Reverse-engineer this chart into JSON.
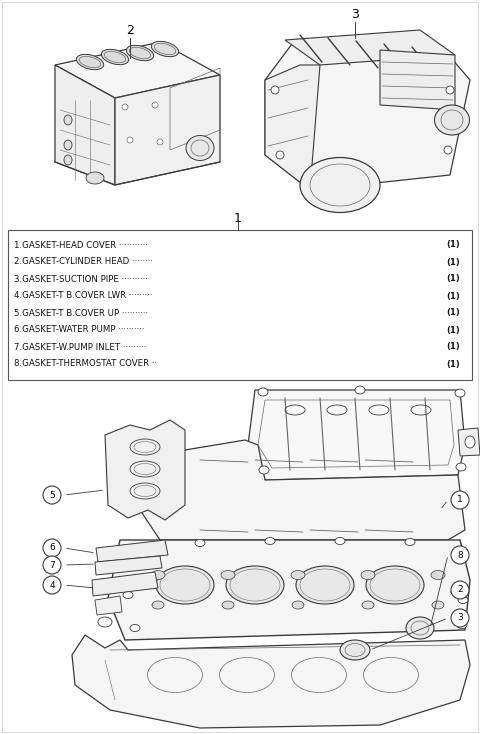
{
  "background_color": "#ffffff",
  "figsize": [
    4.8,
    7.34
  ],
  "dpi": 100,
  "part_label_items": [
    "1.GASKET-HEAD COVER",
    "2.GASKET-CYLINDER HEAD",
    "3.GASKET-SUCTION PIPE",
    "4.GASKET-T B.COVER LWR",
    "5.GASKET-T B.COVER UP",
    "6.GASKET-WATER PUMP",
    "7.GASKET-W.PUMP INLET",
    "8.GASKET-THERMOSTAT COVER"
  ],
  "part_dots": [
    " ···········",
    " ········",
    " ··········",
    " ·········",
    " ··········",
    " ··········",
    " ·········",
    " ··"
  ],
  "part_qty": [
    "(1)",
    "(1)",
    "(1)",
    "(1)",
    "(1)",
    "(1)",
    "(1)",
    "(1)"
  ],
  "label_fontsize": 6.2,
  "callout_fontsize": 6.5,
  "number_fontsize": 9.0,
  "lc": "#3a3a3a",
  "lc2": "#666666"
}
